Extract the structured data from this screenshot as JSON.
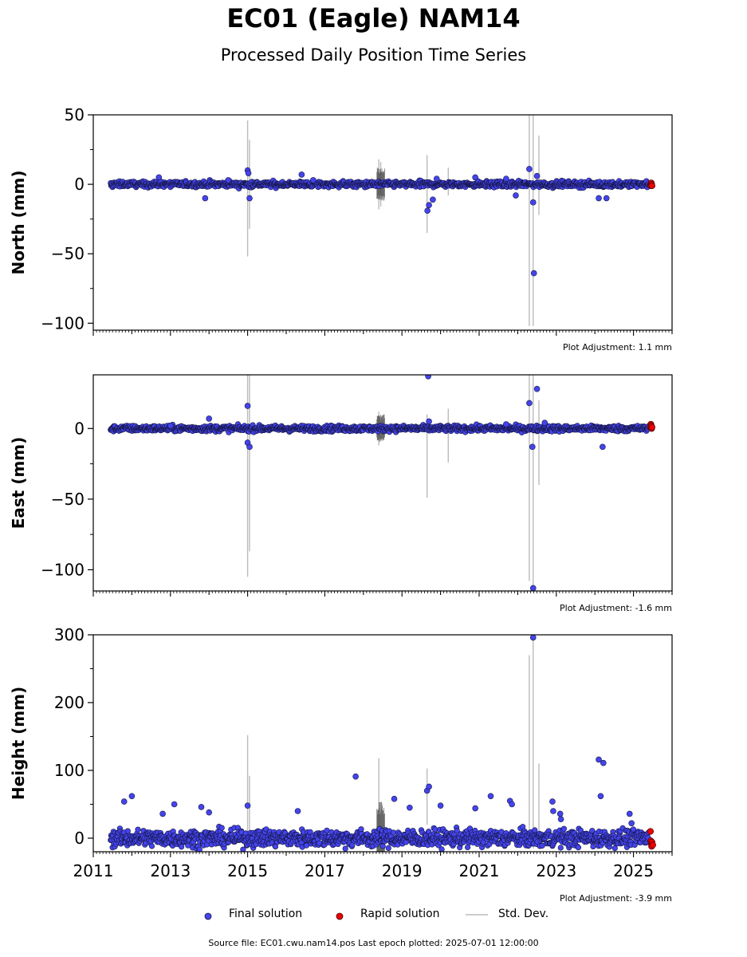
{
  "header": {
    "title": "EC01 (Eagle) NAM14",
    "subtitle": "Processed Daily Position Time Series"
  },
  "footer": {
    "source_text": "Source file: EC01.cwu.nam14.pos  Last epoch plotted: 2025-07-01 12:00:00"
  },
  "legend": {
    "final_label": "Final solution",
    "rapid_label": "Rapid solution",
    "std_label": "Std. Dev."
  },
  "colors": {
    "final": "#4444ee",
    "final_edge": "#151540",
    "rapid": "#ee0000",
    "std": "#bbbbbb",
    "std_dense": "#555555"
  },
  "chart_data": [
    {
      "type": "scatter",
      "ylabel": "North (mm)",
      "ylim": [
        -105,
        50
      ],
      "yticks": [
        -100,
        -50,
        0,
        50
      ],
      "ytick_labels": [
        "−100",
        "−50",
        "0",
        "50"
      ],
      "xlim": [
        2011.0,
        2026.0
      ],
      "x_tick_labels_visible": false,
      "adjustment_label": "Plot Adjustment: 1.1 mm",
      "baseline_noise_mm": 1.5,
      "outliers": [
        {
          "x": 2012.7,
          "y": 5
        },
        {
          "x": 2013.9,
          "y": -10
        },
        {
          "x": 2014.5,
          "y": 3
        },
        {
          "x": 2015.0,
          "y": 10
        },
        {
          "x": 2015.02,
          "y": 8
        },
        {
          "x": 2015.05,
          "y": -10
        },
        {
          "x": 2016.4,
          "y": 7
        },
        {
          "x": 2016.7,
          "y": 3
        },
        {
          "x": 2019.66,
          "y": -19
        },
        {
          "x": 2019.7,
          "y": -15
        },
        {
          "x": 2019.8,
          "y": -11
        },
        {
          "x": 2019.9,
          "y": 4
        },
        {
          "x": 2020.9,
          "y": 5
        },
        {
          "x": 2021.7,
          "y": 4
        },
        {
          "x": 2021.95,
          "y": -8
        },
        {
          "x": 2022.3,
          "y": 11
        },
        {
          "x": 2022.4,
          "y": -13
        },
        {
          "x": 2022.42,
          "y": -64
        },
        {
          "x": 2022.5,
          "y": 6
        },
        {
          "x": 2024.1,
          "y": -10
        },
        {
          "x": 2024.3,
          "y": -10
        }
      ],
      "std_spikes": [
        {
          "x": 2015.0,
          "low": -52,
          "high": 46
        },
        {
          "x": 2015.05,
          "low": -32,
          "high": 32
        },
        {
          "x": 2018.4,
          "low": -18,
          "high": 18
        },
        {
          "x": 2018.45,
          "low": -16,
          "high": 16
        },
        {
          "x": 2019.65,
          "low": -35,
          "high": 21
        },
        {
          "x": 2020.2,
          "low": -8,
          "high": 12
        },
        {
          "x": 2022.3,
          "low": -102,
          "high": 50
        },
        {
          "x": 2022.4,
          "low": -102,
          "high": 50
        },
        {
          "x": 2022.55,
          "low": -22,
          "high": 35
        }
      ],
      "dense_std": [
        {
          "start": 2018.35,
          "end": 2018.55,
          "half": 12
        }
      ],
      "rapid": [
        {
          "x": 2025.44,
          "y": 0
        },
        {
          "x": 2025.45,
          "y": -1
        },
        {
          "x": 2025.46,
          "y": 1
        },
        {
          "x": 2025.47,
          "y": 0
        },
        {
          "x": 2025.48,
          "y": -1
        }
      ]
    },
    {
      "type": "scatter",
      "ylabel": "East (mm)",
      "ylim": [
        -115,
        38
      ],
      "yticks": [
        -100,
        -50,
        0
      ],
      "ytick_labels": [
        "−100",
        "−50",
        "0"
      ],
      "xlim": [
        2011.0,
        2026.0
      ],
      "x_tick_labels_visible": false,
      "adjustment_label": "Plot Adjustment: -1.6 mm",
      "baseline_noise_mm": 1.5,
      "outliers": [
        {
          "x": 2013.0,
          "y": 2
        },
        {
          "x": 2014.0,
          "y": 7
        },
        {
          "x": 2015.0,
          "y": 16
        },
        {
          "x": 2015.0,
          "y": -10
        },
        {
          "x": 2015.05,
          "y": -13
        },
        {
          "x": 2019.68,
          "y": 37
        },
        {
          "x": 2019.7,
          "y": 5
        },
        {
          "x": 2021.7,
          "y": 3
        },
        {
          "x": 2022.3,
          "y": 18
        },
        {
          "x": 2022.38,
          "y": -13
        },
        {
          "x": 2022.4,
          "y": -113
        },
        {
          "x": 2022.5,
          "y": 28
        },
        {
          "x": 2022.7,
          "y": 4
        },
        {
          "x": 2024.2,
          "y": -13
        }
      ],
      "std_spikes": [
        {
          "x": 2015.0,
          "low": -105,
          "high": 38
        },
        {
          "x": 2015.05,
          "low": -87,
          "high": 38
        },
        {
          "x": 2018.4,
          "low": -12,
          "high": 12
        },
        {
          "x": 2019.65,
          "low": -49,
          "high": 10
        },
        {
          "x": 2020.2,
          "low": -24,
          "high": 14
        },
        {
          "x": 2022.3,
          "low": -108,
          "high": 38
        },
        {
          "x": 2022.4,
          "low": -112,
          "high": 38
        },
        {
          "x": 2022.55,
          "low": -40,
          "high": 20
        }
      ],
      "dense_std": [
        {
          "start": 2018.35,
          "end": 2018.55,
          "half": 10
        }
      ],
      "rapid": [
        {
          "x": 2025.44,
          "y": 1
        },
        {
          "x": 2025.45,
          "y": 3
        },
        {
          "x": 2025.46,
          "y": 2
        },
        {
          "x": 2025.47,
          "y": 0
        },
        {
          "x": 2025.48,
          "y": 1
        }
      ]
    },
    {
      "type": "scatter",
      "ylabel": "Height (mm)",
      "ylim": [
        -20,
        300
      ],
      "yticks": [
        0,
        100,
        200,
        300
      ],
      "ytick_labels": [
        "0",
        "100",
        "200",
        "300"
      ],
      "xlim": [
        2011.0,
        2026.0
      ],
      "x_tick_labels_visible": true,
      "xticks": [
        2011,
        2013,
        2015,
        2017,
        2019,
        2021,
        2023,
        2025
      ],
      "xtick_labels": [
        "2011",
        "2013",
        "2015",
        "2017",
        "2019",
        "2021",
        "2023",
        "2025"
      ],
      "adjustment_label": "Plot Adjustment: -3.9 mm",
      "baseline_noise_mm": 9,
      "outliers": [
        {
          "x": 2011.8,
          "y": 54
        },
        {
          "x": 2012.0,
          "y": 62
        },
        {
          "x": 2012.8,
          "y": 36
        },
        {
          "x": 2013.1,
          "y": 50
        },
        {
          "x": 2013.8,
          "y": 46
        },
        {
          "x": 2014.0,
          "y": 38
        },
        {
          "x": 2015.0,
          "y": 48
        },
        {
          "x": 2016.3,
          "y": 40
        },
        {
          "x": 2017.8,
          "y": 91
        },
        {
          "x": 2018.8,
          "y": 58
        },
        {
          "x": 2019.2,
          "y": 45
        },
        {
          "x": 2019.65,
          "y": 70
        },
        {
          "x": 2019.7,
          "y": 76
        },
        {
          "x": 2020.0,
          "y": 48
        },
        {
          "x": 2020.9,
          "y": 44
        },
        {
          "x": 2021.3,
          "y": 62
        },
        {
          "x": 2021.8,
          "y": 55
        },
        {
          "x": 2021.85,
          "y": 50
        },
        {
          "x": 2022.4,
          "y": 296
        },
        {
          "x": 2022.9,
          "y": 54
        },
        {
          "x": 2022.92,
          "y": 40
        },
        {
          "x": 2023.1,
          "y": 36
        },
        {
          "x": 2023.12,
          "y": 28
        },
        {
          "x": 2024.1,
          "y": 116
        },
        {
          "x": 2024.22,
          "y": 111
        },
        {
          "x": 2024.15,
          "y": 62
        },
        {
          "x": 2024.9,
          "y": 36
        },
        {
          "x": 2024.95,
          "y": 22
        }
      ],
      "std_spikes": [
        {
          "x": 2015.0,
          "low": -10,
          "high": 152
        },
        {
          "x": 2015.05,
          "low": -8,
          "high": 92
        },
        {
          "x": 2018.4,
          "low": -15,
          "high": 118
        },
        {
          "x": 2019.65,
          "low": 20,
          "high": 103
        },
        {
          "x": 2022.3,
          "low": -15,
          "high": 270
        },
        {
          "x": 2022.4,
          "low": -15,
          "high": 300
        },
        {
          "x": 2022.55,
          "low": -10,
          "high": 110
        }
      ],
      "dense_std": [
        {
          "start": 2018.35,
          "end": 2018.55,
          "half": 55
        }
      ],
      "rapid": [
        {
          "x": 2025.44,
          "y": 10
        },
        {
          "x": 2025.45,
          "y": -4
        },
        {
          "x": 2025.46,
          "y": -8
        },
        {
          "x": 2025.47,
          "y": -12
        },
        {
          "x": 2025.48,
          "y": -6
        },
        {
          "x": 2025.5,
          "y": -10
        }
      ]
    }
  ]
}
